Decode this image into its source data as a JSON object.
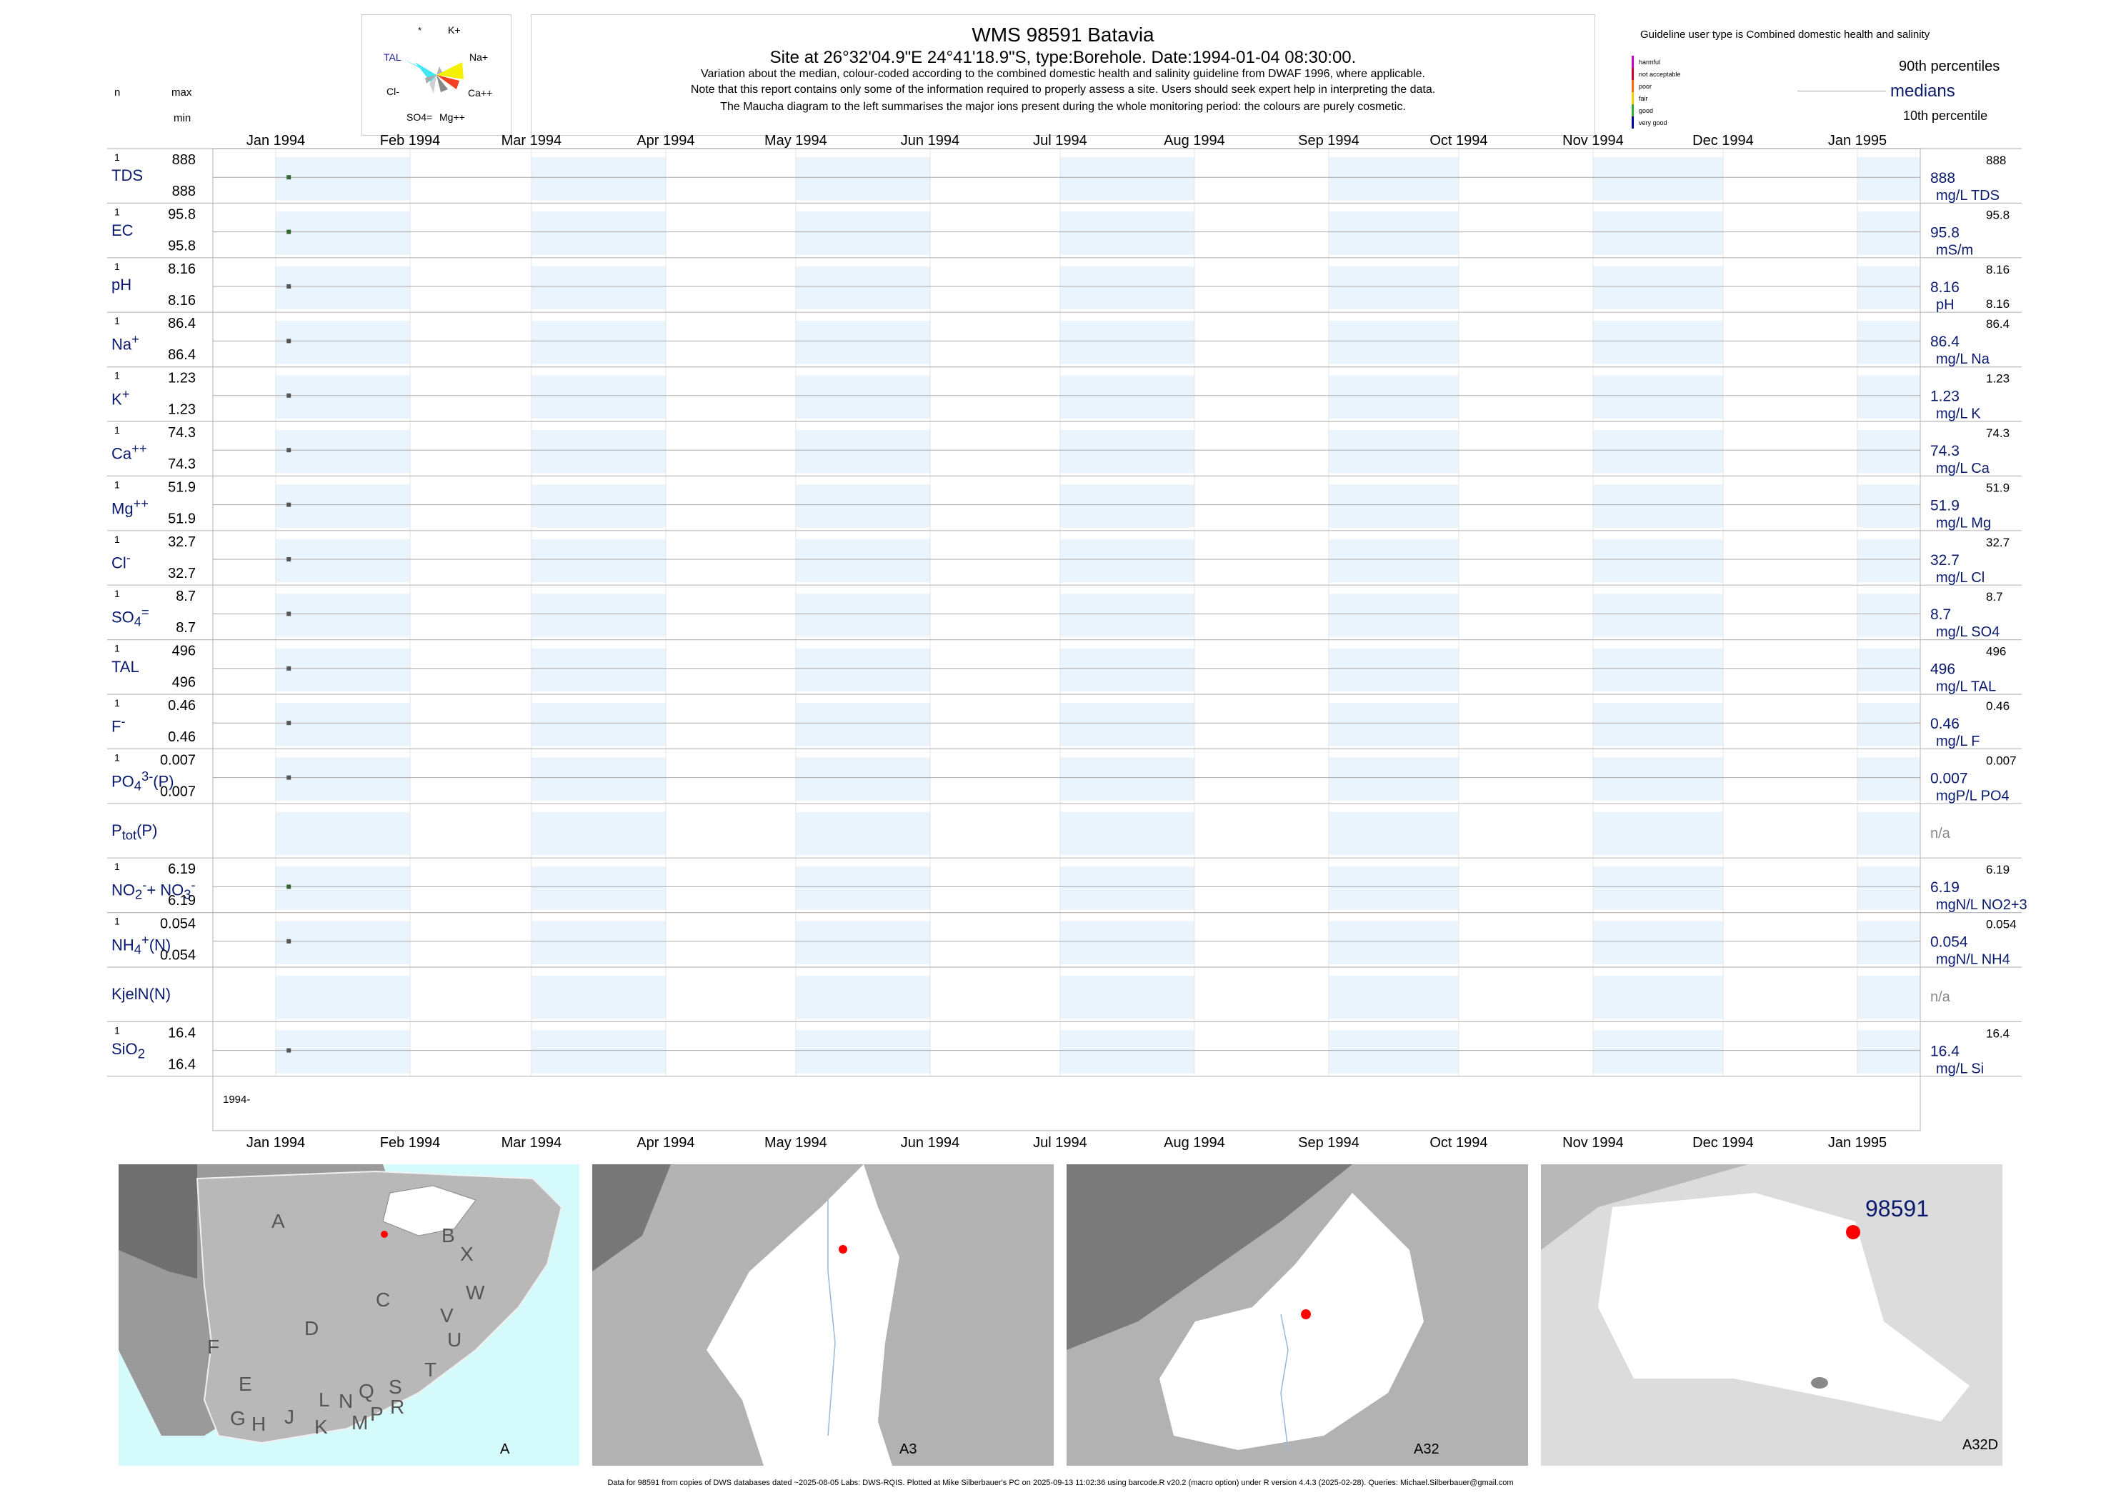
{
  "header": {
    "title": "WMS 98591  Batavia",
    "subtitle": "Site at 26°32'04.9\"E 24°41'18.9\"S, type:Borehole. Date:1994-01-04 08:30:00.",
    "note1": "Variation about the median,  colour-coded according to the combined domestic health and salinity guideline from DWAF 1996, where applicable.",
    "note2": "Note that this report contains only some of the information required to properly assess a site. Users should seek expert help in interpreting the data.",
    "note3": "The Maucha diagram to the left summarises the major ions present during the whole monitoring period: the colours are purely cosmetic."
  },
  "col_heads": {
    "n": "n",
    "max": "max",
    "min": "min"
  },
  "maucha": {
    "labels": [
      "K+",
      "Na+",
      "Ca++",
      "Mg++",
      "SO4=",
      "Cl-",
      "TAL",
      "*"
    ],
    "colors": {
      "K": "#b0b0b0",
      "Na": "#f4f000",
      "Ca": "#f24020",
      "Mg": "#888888",
      "SO4": "#cfcfcf",
      "Cl": "#a8a8a8",
      "TAL": "#3fe8f4"
    }
  },
  "legend": {
    "guideline_title": "Guideline user type is Combined domestic health and salinity",
    "categories": [
      "harmful",
      "not acceptable",
      "poor",
      "fair",
      "good",
      "very good"
    ],
    "category_colors": [
      "#cc00cc",
      "#cc0033",
      "#ff6600",
      "#ffcc00",
      "#33aa33",
      "#0000aa"
    ],
    "p90": "90th percentiles",
    "medians": "medians",
    "p10": "10th percentile"
  },
  "months": [
    "Jan 1994",
    "Feb 1994",
    "Mar 1994",
    "Apr 1994",
    "May 1994",
    "Jun 1994",
    "Jul 1994",
    "Aug 1994",
    "Sep 1994",
    "Oct 1994",
    "Nov 1994",
    "Dec 1994",
    "Jan 1995"
  ],
  "year_label": "1994-",
  "rows": [
    {
      "name": "TDS",
      "html": "TDS",
      "n": "1",
      "max": "888",
      "min": "888",
      "median": "888",
      "p90": "888",
      "p10": "",
      "unit": "mg/L TDS",
      "color": "#336633"
    },
    {
      "name": "EC",
      "html": "EC",
      "n": "1",
      "max": "95.8",
      "min": "95.8",
      "median": "95.8",
      "p90": "95.8",
      "p10": "",
      "unit": "mS/m",
      "color": "#336633"
    },
    {
      "name": "pH",
      "html": "pH",
      "n": "1",
      "max": "8.16",
      "min": "8.16",
      "median": "8.16",
      "p90": "8.16",
      "p10": "8.16",
      "unit": "pH",
      "color": "#555555"
    },
    {
      "name": "Na+",
      "html": "Na<sup>+</sup>",
      "n": "1",
      "max": "86.4",
      "min": "86.4",
      "median": "86.4",
      "p90": "86.4",
      "p10": "",
      "unit": "mg/L Na",
      "color": "#555555"
    },
    {
      "name": "K+",
      "html": "K<sup>+</sup>",
      "n": "1",
      "max": "1.23",
      "min": "1.23",
      "median": "1.23",
      "p90": "1.23",
      "p10": "",
      "unit": "mg/L K",
      "color": "#555555"
    },
    {
      "name": "Ca++",
      "html": "Ca<sup>++</sup>",
      "n": "1",
      "max": "74.3",
      "min": "74.3",
      "median": "74.3",
      "p90": "74.3",
      "p10": "",
      "unit": "mg/L Ca",
      "color": "#555555"
    },
    {
      "name": "Mg++",
      "html": "Mg<sup>++</sup>",
      "n": "1",
      "max": "51.9",
      "min": "51.9",
      "median": "51.9",
      "p90": "51.9",
      "p10": "",
      "unit": "mg/L Mg",
      "color": "#555555"
    },
    {
      "name": "Cl-",
      "html": "Cl<sup>-</sup>",
      "n": "1",
      "max": "32.7",
      "min": "32.7",
      "median": "32.7",
      "p90": "32.7",
      "p10": "",
      "unit": "mg/L Cl",
      "color": "#555555"
    },
    {
      "name": "SO4=",
      "html": "SO<sub>4</sub><sup>=</sup>",
      "n": "1",
      "max": "8.7",
      "min": "8.7",
      "median": "8.7",
      "p90": "8.7",
      "p10": "",
      "unit": "mg/L SO4",
      "color": "#555555"
    },
    {
      "name": "TAL",
      "html": "TAL",
      "n": "1",
      "max": "496",
      "min": "496",
      "median": "496",
      "p90": "496",
      "p10": "",
      "unit": "mg/L TAL",
      "color": "#555555"
    },
    {
      "name": "F-",
      "html": "F<sup>-</sup>",
      "n": "1",
      "max": "0.46",
      "min": "0.46",
      "median": "0.46",
      "p90": "0.46",
      "p10": "",
      "unit": "mg/L F",
      "color": "#555555"
    },
    {
      "name": "PO4(P)",
      "html": "PO<sub>4</sub><sup>3-</sup>(P)",
      "n": "1",
      "max": "0.007",
      "min": "0.007",
      "median": "0.007",
      "p90": "0.007",
      "p10": "",
      "unit": "mgP/L PO4",
      "color": "#555555"
    },
    {
      "name": "Ptot(P)",
      "html": "P<sub>tot</sub>(P)",
      "n": "",
      "max": "",
      "min": "",
      "median": "n/a",
      "p90": "",
      "p10": "",
      "unit": "",
      "color": "#555555"
    },
    {
      "name": "NO2+NO3(N)",
      "html": "NO<sub>2</sub><sup>-</sup>+ NO<sub>3</sub><sup>-</sup>(N)",
      "n": "1",
      "max": "6.19",
      "min": "6.19",
      "median": "6.19",
      "p90": "6.19",
      "p10": "",
      "unit": "mgN/L NO2+3",
      "color": "#336633"
    },
    {
      "name": "NH4(N)",
      "html": "NH<sub>4</sub><sup>+</sup>(N)",
      "n": "1",
      "max": "0.054",
      "min": "0.054",
      "median": "0.054",
      "p90": "0.054",
      "p10": "",
      "unit": "mgN/L NH4",
      "color": "#555555"
    },
    {
      "name": "KjelN(N)",
      "html": "KjelN(N)",
      "n": "",
      "max": "",
      "min": "",
      "median": "n/a",
      "p90": "",
      "p10": "",
      "unit": "",
      "color": "#555555"
    },
    {
      "name": "SiO2",
      "html": "SiO<sub>2</sub>",
      "n": "1",
      "max": "16.4",
      "min": "16.4",
      "median": "16.4",
      "p90": "16.4",
      "p10": "",
      "unit": "mg/L Si",
      "color": "#555555"
    }
  ],
  "chart_data": {
    "type": "scatter",
    "x_range": [
      "1994-01-01",
      "1995-01-01"
    ],
    "x_ticks": [
      "Jan 1994",
      "Feb 1994",
      "Mar 1994",
      "Apr 1994",
      "May 1994",
      "Jun 1994",
      "Jul 1994",
      "Aug 1994",
      "Sep 1994",
      "Oct 1994",
      "Nov 1994",
      "Dec 1994",
      "Jan 1995"
    ],
    "sample_date": "1994-01-04",
    "series": [
      {
        "name": "TDS",
        "x": [
          "1994-01-04"
        ],
        "y": [
          888
        ]
      },
      {
        "name": "EC",
        "x": [
          "1994-01-04"
        ],
        "y": [
          95.8
        ]
      },
      {
        "name": "pH",
        "x": [
          "1994-01-04"
        ],
        "y": [
          8.16
        ]
      },
      {
        "name": "Na+",
        "x": [
          "1994-01-04"
        ],
        "y": [
          86.4
        ]
      },
      {
        "name": "K+",
        "x": [
          "1994-01-04"
        ],
        "y": [
          1.23
        ]
      },
      {
        "name": "Ca++",
        "x": [
          "1994-01-04"
        ],
        "y": [
          74.3
        ]
      },
      {
        "name": "Mg++",
        "x": [
          "1994-01-04"
        ],
        "y": [
          51.9
        ]
      },
      {
        "name": "Cl-",
        "x": [
          "1994-01-04"
        ],
        "y": [
          32.7
        ]
      },
      {
        "name": "SO4=",
        "x": [
          "1994-01-04"
        ],
        "y": [
          8.7
        ]
      },
      {
        "name": "TAL",
        "x": [
          "1994-01-04"
        ],
        "y": [
          496
        ]
      },
      {
        "name": "F-",
        "x": [
          "1994-01-04"
        ],
        "y": [
          0.46
        ]
      },
      {
        "name": "PO4(P)",
        "x": [
          "1994-01-04"
        ],
        "y": [
          0.007
        ]
      },
      {
        "name": "Ptot(P)",
        "x": [],
        "y": []
      },
      {
        "name": "NO2+NO3(N)",
        "x": [
          "1994-01-04"
        ],
        "y": [
          6.19
        ]
      },
      {
        "name": "NH4(N)",
        "x": [
          "1994-01-04"
        ],
        "y": [
          0.054
        ]
      },
      {
        "name": "KjelN(N)",
        "x": [],
        "y": []
      },
      {
        "name": "SiO2",
        "x": [
          "1994-01-04"
        ],
        "y": [
          16.4
        ]
      }
    ]
  },
  "maps": [
    {
      "label": "A",
      "regions": [
        "A",
        "B",
        "X",
        "W",
        "C",
        "D",
        "V",
        "U",
        "T",
        "F",
        "E",
        "G",
        "H",
        "J",
        "K",
        "L",
        "N",
        "Q",
        "M",
        "P",
        "S",
        "R"
      ]
    },
    {
      "label": "A3"
    },
    {
      "label": "A32"
    },
    {
      "label": "A32D",
      "site": "98591"
    }
  ],
  "footer": "Data for 98591 from copies of DWS databases dated ~2025-08-05 Labs: DWS-RQIS. Plotted at Mike Silberbauer's PC on 2025-09-13 11:02:36 using barcode.R v20.2 (macro option) under R version 4.4.3 (2025-02-28). Queries: Michael.Silberbauer@gmail.com"
}
